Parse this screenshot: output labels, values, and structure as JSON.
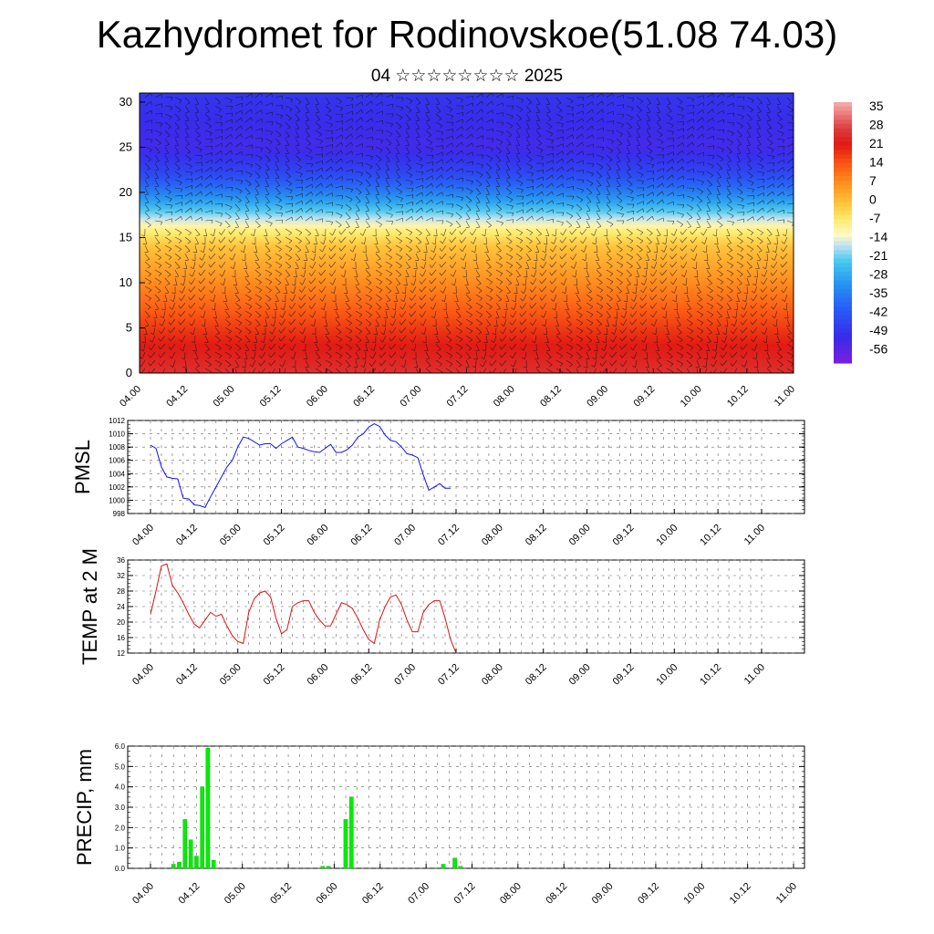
{
  "header": {
    "title": "Kazhydromet for Rodinovskoe(51.08 74.03)",
    "subtitle": "04 ☆☆☆☆☆☆☆☆ 2025"
  },
  "chart_data": [
    {
      "type": "heatmap",
      "ylim": [
        0,
        31
      ],
      "y_ticks": [
        "0",
        "5",
        "10",
        "15",
        "20",
        "25",
        "30"
      ],
      "x_ticks": [
        "04.00",
        "04.12",
        "05.00",
        "05.12",
        "06.00",
        "06.12",
        "07.00",
        "07.12",
        "08.00",
        "08.12",
        "09.00",
        "09.12",
        "10.00",
        "10.12",
        "11.00"
      ],
      "colorbar_labels": [
        "35",
        "28",
        "21",
        "14",
        "7",
        "0",
        "-7",
        "-14",
        "-21",
        "-28",
        "-35",
        "-42",
        "-49",
        "-56"
      ],
      "colorbar_range": [
        -60,
        38
      ],
      "level_profile": {
        "levels": [
          0,
          3,
          6,
          9,
          12,
          14,
          16,
          18,
          20,
          22,
          25,
          28,
          31
        ],
        "values": [
          26,
          22,
          16,
          10,
          4,
          0,
          -8,
          -22,
          -34,
          -44,
          -52,
          -50,
          -48
        ]
      },
      "overlay": "wind-barbs"
    },
    {
      "type": "line",
      "ylabel": "PMSL",
      "ylim": [
        998,
        1012
      ],
      "y_ticks": [
        "998",
        "1000",
        "1002",
        "1004",
        "1006",
        "1008",
        "1010",
        "1012"
      ],
      "x_ticks": [
        "04.00",
        "04.12",
        "05.00",
        "05.12",
        "06.00",
        "06.12",
        "07.00",
        "07.12",
        "08.00",
        "08.12",
        "09.00",
        "09.12",
        "10.00",
        "10.12",
        "11.00"
      ],
      "x": [
        0.0,
        0.125,
        0.25,
        0.375,
        0.5,
        0.625,
        0.75,
        0.875,
        1.0,
        1.125,
        1.25,
        1.375,
        1.5,
        1.625,
        1.75,
        1.875,
        2.0,
        2.125,
        2.25,
        2.375,
        2.5,
        2.625,
        2.75,
        2.875,
        3.0,
        3.125,
        3.25,
        3.375,
        3.5,
        3.625,
        3.75,
        3.875,
        4.0,
        4.125,
        4.25,
        4.375,
        4.5,
        4.625,
        4.75,
        4.875,
        5.0,
        5.125,
        5.25,
        5.375,
        5.5,
        5.625,
        5.75,
        5.875,
        6.0,
        6.125,
        6.25,
        6.375,
        6.5,
        6.625,
        6.75,
        6.875,
        7.0
      ],
      "series": [
        {
          "values": [
            1008.3,
            1007.8,
            1005.0,
            1003.5,
            1003.3,
            1003.2,
            1000.3,
            1000.2,
            999.3,
            999.2,
            998.9,
            1000.5,
            1002.0,
            1003.5,
            1005.0,
            1006.0,
            1008.0,
            1009.5,
            1009.3,
            1008.8,
            1008.3,
            1008.5,
            1008.5,
            1007.8,
            1008.5,
            1009.0,
            1009.5,
            1008.0,
            1007.8,
            1007.5,
            1007.3,
            1007.2,
            1007.8,
            1008.4,
            1007.2,
            1007.2,
            1007.6,
            1008.3,
            1009.5,
            1010.0,
            1011.0,
            1011.5,
            1011.1,
            1009.8,
            1009.0,
            1008.8,
            1008.0,
            1007.0,
            1006.8,
            1006.4,
            1003.8,
            1001.5,
            1002.0,
            1002.5,
            1001.8,
            1001.8,
            null
          ],
          "color": "#1010ff"
        }
      ]
    },
    {
      "type": "line",
      "ylabel": "TEMP at 2 M",
      "ylim": [
        12,
        36
      ],
      "y_ticks": [
        "12",
        "16",
        "20",
        "24",
        "28",
        "32",
        "36"
      ],
      "x_ticks": [
        "04.00",
        "04.12",
        "05.00",
        "05.12",
        "06.00",
        "06.12",
        "07.00",
        "07.12",
        "08.00",
        "08.12",
        "09.00",
        "09.12",
        "10.00",
        "10.12",
        "11.00"
      ],
      "x": [
        0.0,
        0.125,
        0.25,
        0.375,
        0.5,
        0.625,
        0.75,
        0.875,
        1.0,
        1.125,
        1.25,
        1.375,
        1.5,
        1.625,
        1.75,
        1.875,
        2.0,
        2.125,
        2.25,
        2.375,
        2.5,
        2.625,
        2.75,
        2.875,
        3.0,
        3.125,
        3.25,
        3.375,
        3.5,
        3.625,
        3.75,
        3.875,
        4.0,
        4.125,
        4.25,
        4.375,
        4.5,
        4.625,
        4.75,
        4.875,
        5.0,
        5.125,
        5.25,
        5.375,
        5.5,
        5.625,
        5.75,
        5.875,
        6.0,
        6.125,
        6.25,
        6.375,
        6.5,
        6.625,
        6.75,
        6.875,
        7.0
      ],
      "series": [
        {
          "values": [
            22.0,
            28.0,
            34.5,
            35.0,
            29.5,
            27.5,
            25.0,
            22.0,
            19.5,
            18.5,
            20.5,
            22.5,
            21.5,
            22.0,
            19.0,
            16.5,
            15.0,
            14.5,
            22.5,
            26.0,
            27.5,
            28.0,
            26.5,
            21.0,
            17.0,
            18.0,
            24.0,
            25.0,
            25.5,
            25.5,
            22.5,
            20.5,
            19.0,
            19.0,
            22.0,
            25.0,
            24.5,
            23.5,
            21.0,
            18.0,
            15.5,
            14.5,
            20.5,
            24.0,
            26.5,
            27.0,
            24.5,
            20.5,
            17.5,
            17.5,
            22.5,
            24.5,
            25.5,
            25.5,
            21.0,
            15.5,
            12.0
          ],
          "color": "#e01010"
        }
      ]
    },
    {
      "type": "bar",
      "ylabel": "PRECIP, mm",
      "ylim": [
        0,
        6
      ],
      "y_ticks": [
        "0.0",
        "1.0",
        "2.0",
        "3.0",
        "4.0",
        "5.0",
        "6.0"
      ],
      "x_ticks": [
        "04.00",
        "04.12",
        "05.00",
        "05.12",
        "06.00",
        "06.12",
        "07.00",
        "07.12",
        "08.00",
        "08.12",
        "09.00",
        "09.12",
        "10.00",
        "10.12",
        "11.00"
      ],
      "x": [
        0.5,
        0.625,
        0.75,
        0.875,
        1.0,
        1.125,
        1.25,
        1.375,
        1.5,
        3.75,
        3.875,
        4.25,
        4.375,
        6.375,
        6.625,
        6.75
      ],
      "series": [
        {
          "values": [
            0.2,
            0.3,
            2.4,
            1.4,
            0.6,
            4.0,
            5.9,
            0.4,
            0.0,
            0.1,
            0.1,
            2.4,
            3.5,
            0.2,
            0.5,
            0.1
          ],
          "color": "#00ee00"
        }
      ]
    }
  ]
}
